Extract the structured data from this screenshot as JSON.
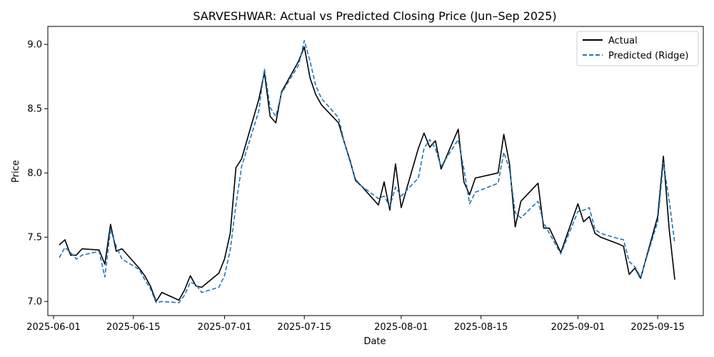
{
  "chart_data": {
    "type": "line",
    "title": "SARVESHWAR: Actual vs Predicted Closing Price (Jun–Sep 2025)",
    "xlabel": "Date",
    "ylabel": "Price",
    "x_tick_labels": [
      "2025-06-01",
      "2025-06-15",
      "2025-07-01",
      "2025-07-15",
      "2025-08-01",
      "2025-08-15",
      "2025-09-01",
      "2025-09-15"
    ],
    "x_ticks": [
      "2025-06-01",
      "2025-06-15",
      "2025-07-01",
      "2025-07-15",
      "2025-08-01",
      "2025-08-15",
      "2025-09-01",
      "2025-09-15"
    ],
    "y_ticks": [
      7.0,
      7.5,
      8.0,
      8.5,
      9.0
    ],
    "y_tick_labels": [
      "7.0",
      "7.5",
      "8.0",
      "8.5",
      "9.0"
    ],
    "xlim": [
      "2025-05-31",
      "2025-09-23"
    ],
    "ylim": [
      6.89,
      9.14
    ],
    "grid": false,
    "legend_position": "top-right",
    "dates": [
      "2025-06-02",
      "2025-06-03",
      "2025-06-04",
      "2025-06-05",
      "2025-06-06",
      "2025-06-09",
      "2025-06-10",
      "2025-06-11",
      "2025-06-12",
      "2025-06-13",
      "2025-06-16",
      "2025-06-17",
      "2025-06-18",
      "2025-06-19",
      "2025-06-20",
      "2025-06-23",
      "2025-06-24",
      "2025-06-25",
      "2025-06-26",
      "2025-06-27",
      "2025-06-30",
      "2025-07-01",
      "2025-07-02",
      "2025-07-03",
      "2025-07-04",
      "2025-07-07",
      "2025-07-08",
      "2025-07-09",
      "2025-07-10",
      "2025-07-11",
      "2025-07-14",
      "2025-07-15",
      "2025-07-16",
      "2025-07-17",
      "2025-07-18",
      "2025-07-21",
      "2025-07-22",
      "2025-07-23",
      "2025-07-24",
      "2025-07-25",
      "2025-07-28",
      "2025-07-29",
      "2025-07-30",
      "2025-07-31",
      "2025-08-01",
      "2025-08-04",
      "2025-08-05",
      "2025-08-06",
      "2025-08-07",
      "2025-08-08",
      "2025-08-11",
      "2025-08-12",
      "2025-08-13",
      "2025-08-14",
      "2025-08-18",
      "2025-08-19",
      "2025-08-20",
      "2025-08-21",
      "2025-08-22",
      "2025-08-25",
      "2025-08-26",
      "2025-08-27",
      "2025-08-29",
      "2025-09-01",
      "2025-09-02",
      "2025-09-03",
      "2025-09-04",
      "2025-09-05",
      "2025-09-08",
      "2025-09-09",
      "2025-09-10",
      "2025-09-11",
      "2025-09-12",
      "2025-09-15",
      "2025-09-16",
      "2025-09-17",
      "2025-09-18"
    ],
    "series": [
      {
        "name": "Actual",
        "color": "#000000",
        "style": "solid",
        "values": [
          7.44,
          7.48,
          7.36,
          7.36,
          7.41,
          7.4,
          7.29,
          7.6,
          7.39,
          7.41,
          7.26,
          7.2,
          7.12,
          7.0,
          7.07,
          7.01,
          7.09,
          7.2,
          7.12,
          7.11,
          7.22,
          7.33,
          7.53,
          8.04,
          8.11,
          8.57,
          8.78,
          8.44,
          8.39,
          8.63,
          8.87,
          8.98,
          8.74,
          8.61,
          8.53,
          8.39,
          8.24,
          8.1,
          7.94,
          7.9,
          7.75,
          7.93,
          7.71,
          8.07,
          7.73,
          8.19,
          8.31,
          8.2,
          8.25,
          8.03,
          8.34,
          7.93,
          7.83,
          7.96,
          8.0,
          8.3,
          8.07,
          7.58,
          7.78,
          7.92,
          7.57,
          7.57,
          7.38,
          7.76,
          7.62,
          7.66,
          7.53,
          7.5,
          7.45,
          7.43,
          7.21,
          7.26,
          7.18,
          7.66,
          8.13,
          7.57,
          7.17
        ]
      },
      {
        "name": "Predicted (Ridge)",
        "color": "#1f77b4",
        "style": "dashed",
        "values": [
          7.34,
          7.42,
          7.38,
          7.33,
          7.36,
          7.39,
          7.19,
          7.56,
          7.43,
          7.33,
          7.25,
          7.17,
          7.1,
          6.99,
          7.0,
          6.99,
          7.05,
          7.15,
          7.13,
          7.07,
          7.11,
          7.2,
          7.4,
          7.75,
          8.05,
          8.48,
          8.81,
          8.51,
          8.44,
          8.62,
          8.84,
          9.03,
          8.87,
          8.68,
          8.58,
          8.43,
          8.24,
          8.09,
          7.95,
          7.9,
          7.8,
          7.82,
          7.74,
          7.89,
          7.82,
          7.96,
          8.19,
          8.26,
          8.19,
          8.05,
          8.26,
          8.03,
          7.76,
          7.85,
          7.92,
          8.16,
          8.03,
          7.69,
          7.65,
          7.78,
          7.61,
          7.53,
          7.37,
          7.7,
          7.71,
          7.73,
          7.56,
          7.53,
          7.49,
          7.48,
          7.31,
          7.27,
          7.19,
          7.62,
          8.08,
          7.79,
          7.45
        ]
      }
    ]
  }
}
